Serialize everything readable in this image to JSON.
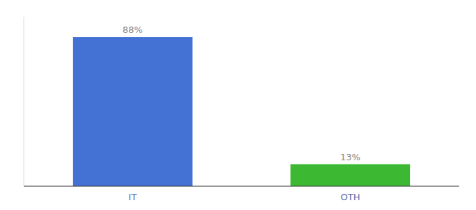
{
  "chart_data": {
    "type": "bar",
    "categories": [
      "IT",
      "OTH"
    ],
    "values": [
      88,
      13
    ],
    "colors": [
      "#4472d4",
      "#3cb832"
    ],
    "value_labels": [
      "88%",
      "13%"
    ],
    "data_labels": true,
    "ylim": [
      0,
      100
    ],
    "tick_labels": "x"
  }
}
